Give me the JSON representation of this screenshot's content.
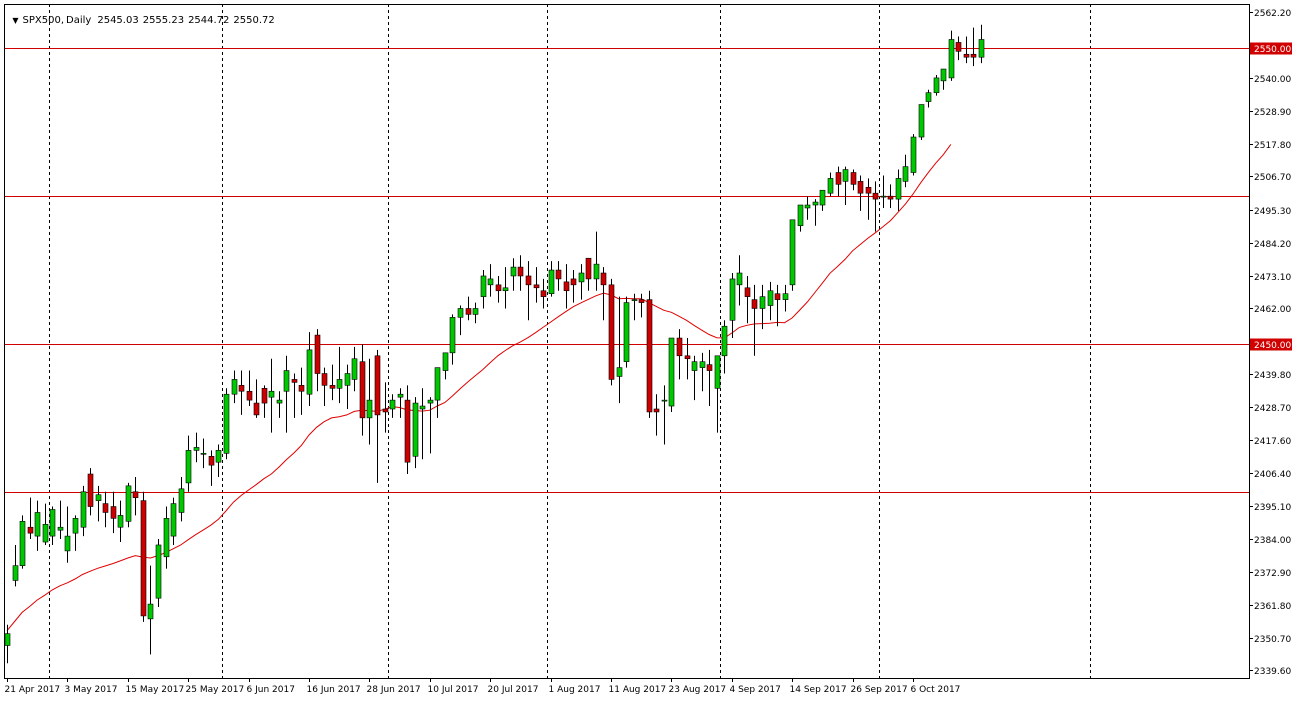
{
  "header": {
    "menu_icon": "triangle-down-icon",
    "symbol": "SPX500",
    "timeframe": "Daily",
    "open": "2545.03",
    "high": "2555.23",
    "low": "2544.72",
    "close": "2550.72"
  },
  "colors": {
    "background": "#ffffff",
    "grid": "#000000",
    "axis": "#000000",
    "bull_body": "#00c800",
    "bear_body": "#cc0000",
    "wick": "#000000",
    "moving_average": "#e00000",
    "hline": "#d00000",
    "hline_label_bg": "#d00000",
    "hline_label_text": "#ffffff"
  },
  "chart_data": {
    "type": "candlestick",
    "title": "SPX500,Daily",
    "ylim": [
      2337.0,
      2565.0
    ],
    "y_ticks": [
      "2562.20",
      "2550.00",
      "2540.00",
      "2528.90",
      "2517.80",
      "2506.70",
      "2495.30",
      "2484.20",
      "2473.10",
      "2462.00",
      "2450.00",
      "2439.80",
      "2428.70",
      "2417.60",
      "2406.40",
      "2395.10",
      "2384.00",
      "2372.90",
      "2361.80",
      "2350.70",
      "2339.60"
    ],
    "x_tick_labels": [
      "21 Apr 2017",
      "3 May 2017",
      "15 May 2017",
      "25 May 2017",
      "6 Jun 2017",
      "16 Jun 2017",
      "28 Jun 2017",
      "10 Jul 2017",
      "20 Jul 2017",
      "1 Aug 2017",
      "11 Aug 2017",
      "23 Aug 2017",
      "4 Sep 2017",
      "14 Sep 2017",
      "26 Sep 2017",
      "6 Oct 2017"
    ],
    "x_tick_index": [
      0,
      8,
      16,
      24,
      32,
      40,
      48,
      56,
      64,
      72,
      80,
      88,
      96,
      104,
      112,
      120
    ],
    "vgrid_index": [
      6,
      29,
      51,
      72,
      95,
      116,
      144
    ],
    "horizontal_levels": [
      "2550.00",
      "2500.00",
      "2450.00",
      "2400.00"
    ],
    "ohlc": [
      [
        2348,
        2355,
        2342,
        2352
      ],
      [
        2370,
        2382,
        2368,
        2375
      ],
      [
        2375,
        2392,
        2374,
        2390
      ],
      [
        2388,
        2398,
        2384,
        2386
      ],
      [
        2385,
        2397,
        2380,
        2393
      ],
      [
        2383,
        2396,
        2382,
        2389
      ],
      [
        2385,
        2395,
        2382,
        2394
      ],
      [
        2387,
        2397,
        2384,
        2388
      ],
      [
        2380,
        2395,
        2376,
        2385
      ],
      [
        2386,
        2392,
        2380,
        2391
      ],
      [
        2388,
        2402,
        2385,
        2400
      ],
      [
        2406,
        2408,
        2392,
        2395
      ],
      [
        2397,
        2402,
        2390,
        2399
      ],
      [
        2396,
        2400,
        2388,
        2393
      ],
      [
        2395,
        2400,
        2386,
        2391
      ],
      [
        2388,
        2397,
        2383,
        2392
      ],
      [
        2390,
        2403,
        2388,
        2402
      ],
      [
        2400,
        2405,
        2392,
        2398
      ],
      [
        2397,
        2400,
        2356,
        2358
      ],
      [
        2357,
        2375,
        2345,
        2362
      ],
      [
        2364,
        2384,
        2361,
        2382
      ],
      [
        2378,
        2395,
        2374,
        2391
      ],
      [
        2385,
        2398,
        2382,
        2396
      ],
      [
        2393,
        2405,
        2390,
        2401
      ],
      [
        2403,
        2419,
        2400,
        2414
      ],
      [
        2414,
        2420,
        2410,
        2415
      ],
      [
        2413,
        2418,
        2408,
        2413
      ],
      [
        2412,
        2414,
        2402,
        2409
      ],
      [
        2410,
        2416,
        2405,
        2414
      ],
      [
        2413,
        2435,
        2411,
        2433
      ],
      [
        2433,
        2441,
        2430,
        2438
      ],
      [
        2436,
        2441,
        2426,
        2434
      ],
      [
        2434,
        2441,
        2429,
        2431
      ],
      [
        2430,
        2438,
        2425,
        2426
      ],
      [
        2435,
        2436,
        2425,
        2430
      ],
      [
        2432,
        2445,
        2420,
        2434
      ],
      [
        2430,
        2434,
        2425,
        2431
      ],
      [
        2434,
        2446,
        2420,
        2441
      ],
      [
        2438,
        2440,
        2425,
        2437
      ],
      [
        2436,
        2442,
        2426,
        2434
      ],
      [
        2433,
        2454,
        2429,
        2448
      ],
      [
        2453,
        2455,
        2434,
        2440
      ],
      [
        2440,
        2442,
        2429,
        2436
      ],
      [
        2436,
        2443,
        2431,
        2435
      ],
      [
        2435,
        2449,
        2430,
        2438
      ],
      [
        2436,
        2443,
        2428,
        2440
      ],
      [
        2438,
        2449,
        2434,
        2445
      ],
      [
        2444,
        2450,
        2419,
        2425
      ],
      [
        2425,
        2445,
        2416,
        2431
      ],
      [
        2446,
        2448,
        2403,
        2426
      ],
      [
        2428,
        2437,
        2420,
        2427
      ],
      [
        2428,
        2433,
        2425,
        2431
      ],
      [
        2432,
        2435,
        2425,
        2433
      ],
      [
        2431,
        2436,
        2406,
        2410
      ],
      [
        2412,
        2432,
        2408,
        2430
      ],
      [
        2428,
        2435,
        2411,
        2429
      ],
      [
        2430,
        2432,
        2413,
        2431
      ],
      [
        2431,
        2441,
        2425,
        2442
      ],
      [
        2441,
        2447,
        2438,
        2447
      ],
      [
        2447,
        2460,
        2443,
        2459
      ],
      [
        2459,
        2463,
        2453,
        2462
      ],
      [
        2462,
        2466,
        2458,
        2460
      ],
      [
        2460,
        2464,
        2457,
        2462
      ],
      [
        2466,
        2475,
        2462,
        2473
      ],
      [
        2470,
        2477,
        2466,
        2472
      ],
      [
        2470,
        2473,
        2464,
        2468
      ],
      [
        2468,
        2476,
        2462,
        2469
      ],
      [
        2473,
        2479,
        2468,
        2476
      ],
      [
        2476,
        2480,
        2468,
        2473
      ],
      [
        2473,
        2478,
        2458,
        2470
      ],
      [
        2470,
        2476,
        2464,
        2469
      ],
      [
        2468,
        2472,
        2462,
        2466
      ],
      [
        2467,
        2478,
        2466,
        2475
      ],
      [
        2475,
        2478,
        2468,
        2472
      ],
      [
        2471,
        2477,
        2462,
        2468
      ],
      [
        2472,
        2475,
        2464,
        2470
      ],
      [
        2471,
        2477,
        2465,
        2474
      ],
      [
        2479,
        2479,
        2468,
        2472
      ],
      [
        2472,
        2488,
        2468,
        2477
      ],
      [
        2474,
        2476,
        2458,
        2470
      ],
      [
        2470,
        2472,
        2436,
        2438
      ],
      [
        2439,
        2466,
        2430,
        2442
      ],
      [
        2444,
        2466,
        2442,
        2464
      ],
      [
        2465,
        2467,
        2458,
        2465
      ],
      [
        2465,
        2467,
        2459,
        2464
      ],
      [
        2465,
        2468,
        2425,
        2427
      ],
      [
        2428,
        2433,
        2419,
        2427
      ],
      [
        2431,
        2436,
        2416,
        2431
      ],
      [
        2429,
        2451,
        2427,
        2452
      ],
      [
        2452,
        2455,
        2438,
        2446
      ],
      [
        2446,
        2452,
        2438,
        2445
      ],
      [
        2441,
        2446,
        2431,
        2444
      ],
      [
        2442,
        2447,
        2434,
        2444
      ],
      [
        2443,
        2448,
        2429,
        2441
      ],
      [
        2435,
        2445,
        2420,
        2446
      ],
      [
        2446,
        2458,
        2440,
        2456
      ],
      [
        2458,
        2474,
        2452,
        2472
      ],
      [
        2470,
        2480,
        2463,
        2474
      ],
      [
        2469,
        2473,
        2457,
        2466
      ],
      [
        2465,
        2470,
        2446,
        2462
      ],
      [
        2462,
        2470,
        2455,
        2466
      ],
      [
        2463,
        2471,
        2458,
        2468
      ],
      [
        2467,
        2470,
        2456,
        2465
      ],
      [
        2465,
        2470,
        2461,
        2467
      ],
      [
        2470,
        2492,
        2468,
        2492
      ],
      [
        2490,
        2497,
        2488,
        2497
      ],
      [
        2496,
        2500,
        2492,
        2497
      ],
      [
        2497,
        2499,
        2490,
        2498
      ],
      [
        2497,
        2502,
        2495,
        2502
      ],
      [
        2501,
        2508,
        2500,
        2506
      ],
      [
        2508,
        2510,
        2500,
        2504
      ],
      [
        2505,
        2510,
        2497,
        2509
      ],
      [
        2508,
        2509,
        2502,
        2504
      ],
      [
        2505,
        2507,
        2495,
        2501
      ],
      [
        2503,
        2506,
        2492,
        2501
      ],
      [
        2501,
        2505,
        2488,
        2499
      ],
      [
        2500,
        2507,
        2496,
        2500
      ],
      [
        2500,
        2504,
        2496,
        2499
      ],
      [
        2499,
        2509,
        2495,
        2506
      ],
      [
        2505,
        2514,
        2503,
        2510
      ],
      [
        2508,
        2521,
        2507,
        2520
      ],
      [
        2520,
        2531,
        2519,
        2531
      ],
      [
        2532,
        2536,
        2530,
        2535
      ],
      [
        2535,
        2541,
        2534,
        2540
      ],
      [
        2539,
        2543,
        2536,
        2543
      ],
      [
        2540,
        2556,
        2539,
        2553
      ],
      [
        2552,
        2554,
        2546,
        2549
      ],
      [
        2548,
        2554,
        2545,
        2547
      ],
      [
        2548,
        2557,
        2544,
        2547
      ],
      [
        2547,
        2558,
        2545,
        2553
      ]
    ],
    "moving_average": [
      2353.0,
      2356.1,
      2359.2,
      2361.2,
      2363.4,
      2365.0,
      2366.8,
      2368.2,
      2369.2,
      2370.5,
      2372.0,
      2373.1,
      2374.1,
      2374.9,
      2375.7,
      2376.6,
      2377.6,
      2378.4,
      2377.9,
      2377.6,
      2378.4,
      2379.4,
      2380.7,
      2382.0,
      2383.8,
      2385.5,
      2387.1,
      2388.7,
      2390.7,
      2393.5,
      2396.5,
      2398.7,
      2400.6,
      2402.4,
      2404.4,
      2406.0,
      2408.3,
      2410.8,
      2413.1,
      2415.7,
      2419.2,
      2421.8,
      2423.7,
      2425.0,
      2425.4,
      2426.0,
      2427.2,
      2427.6,
      2427.4,
      2427.2,
      2427.9,
      2428.8,
      2428.5,
      2427.7,
      2427.5,
      2427.3,
      2427.6,
      2429.0,
      2430.2,
      2432.4,
      2434.8,
      2437.1,
      2439.2,
      2441.3,
      2443.7,
      2446.0,
      2447.8,
      2449.4,
      2450.7,
      2452.1,
      2453.8,
      2455.6,
      2457.4,
      2459.2,
      2460.9,
      2462.6,
      2463.9,
      2465.1,
      2466.3,
      2467.2,
      2466.6,
      2465.3,
      2465.4,
      2465.3,
      2465.3,
      2464.0,
      2462.7,
      2461.4,
      2460.7,
      2459.4,
      2458.0,
      2456.3,
      2454.7,
      2453.2,
      2452.1,
      2452.0,
      2453.7,
      2455.6,
      2456.3,
      2456.8,
      2456.9,
      2457.0,
      2457.3,
      2457.2,
      2458.8,
      2461.5,
      2464.2,
      2467.4,
      2470.6,
      2473.9,
      2476.2,
      2478.6,
      2481.5,
      2483.6,
      2485.7,
      2487.6,
      2489.6,
      2491.7,
      2494.5,
      2497.3,
      2500.7,
      2504.4,
      2507.9,
      2511.1,
      2514.0,
      2517.5
    ]
  }
}
